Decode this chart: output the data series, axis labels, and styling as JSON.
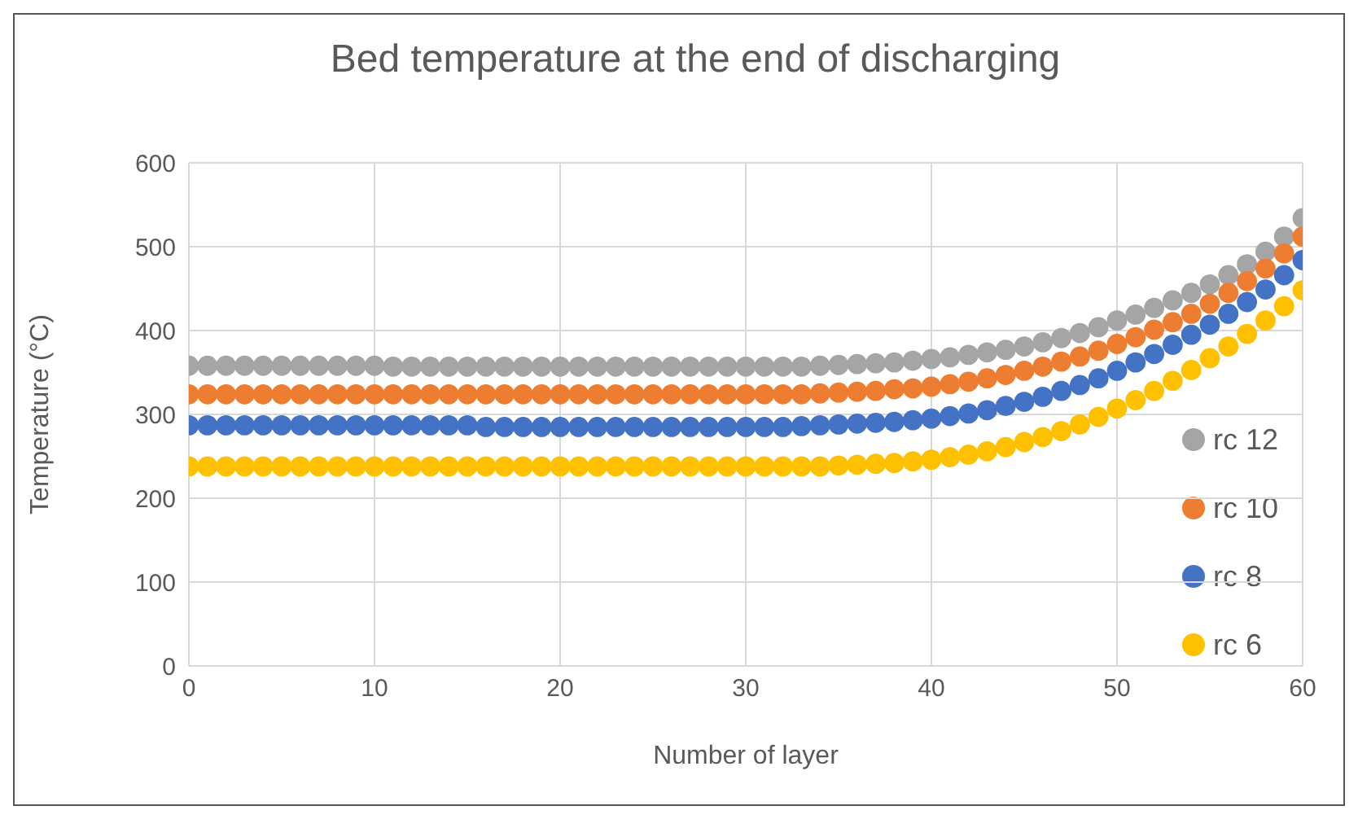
{
  "chart_data": {
    "type": "scatter",
    "title": "Bed temperature at the end of discharging",
    "xlabel": "Number of layer",
    "ylabel": "Temperature (°C)",
    "x": [
      0,
      1,
      2,
      3,
      4,
      5,
      6,
      7,
      8,
      9,
      10,
      11,
      12,
      13,
      14,
      15,
      16,
      17,
      18,
      19,
      20,
      21,
      22,
      23,
      24,
      25,
      26,
      27,
      28,
      29,
      30,
      31,
      32,
      33,
      34,
      35,
      36,
      37,
      38,
      39,
      40,
      41,
      42,
      43,
      44,
      45,
      46,
      47,
      48,
      49,
      50,
      51,
      52,
      53,
      54,
      55,
      56,
      57,
      58,
      59,
      60
    ],
    "series": [
      {
        "name": "rc 12",
        "color": "#a5a5a5",
        "values": [
          358,
          358,
          358,
          358,
          358,
          358,
          358,
          358,
          358,
          358,
          358,
          357,
          357,
          357,
          357,
          357,
          357,
          357,
          357,
          357,
          357,
          357,
          357,
          357,
          357,
          357,
          357,
          357,
          357,
          357,
          357,
          357,
          357,
          357,
          358,
          359,
          360,
          361,
          362,
          364,
          366,
          368,
          371,
          374,
          377,
          381,
          386,
          391,
          397,
          404,
          412,
          419,
          427,
          436,
          445,
          455,
          466,
          479,
          494,
          512,
          534
        ]
      },
      {
        "name": "rc 10",
        "color": "#ed7d31",
        "values": [
          324,
          324,
          324,
          324,
          324,
          324,
          324,
          324,
          324,
          324,
          324,
          324,
          324,
          324,
          324,
          324,
          324,
          324,
          324,
          324,
          324,
          324,
          324,
          324,
          324,
          324,
          324,
          324,
          324,
          324,
          324,
          324,
          324,
          324,
          325,
          326,
          327,
          328,
          330,
          331,
          333,
          336,
          339,
          343,
          347,
          352,
          357,
          363,
          369,
          376,
          384,
          392,
          401,
          410,
          420,
          432,
          445,
          459,
          474,
          492,
          512
        ]
      },
      {
        "name": "rc 8",
        "color": "#4472c4",
        "values": [
          287,
          287,
          287,
          287,
          287,
          287,
          287,
          287,
          287,
          287,
          287,
          287,
          287,
          287,
          287,
          287,
          285,
          285,
          285,
          285,
          285,
          285,
          285,
          285,
          285,
          285,
          285,
          285,
          285,
          285,
          285,
          285,
          285,
          286,
          287,
          288,
          289,
          290,
          291,
          293,
          295,
          298,
          301,
          305,
          310,
          315,
          321,
          328,
          335,
          343,
          352,
          362,
          372,
          383,
          395,
          407,
          420,
          434,
          449,
          466,
          484
        ]
      },
      {
        "name": "rc 6",
        "color": "#ffc000",
        "values": [
          238,
          238,
          238,
          238,
          238,
          238,
          238,
          238,
          238,
          238,
          238,
          238,
          238,
          238,
          238,
          238,
          238,
          238,
          238,
          238,
          238,
          238,
          238,
          238,
          238,
          238,
          238,
          238,
          238,
          238,
          238,
          238,
          238,
          238,
          238,
          239,
          240,
          241,
          242,
          244,
          246,
          249,
          252,
          256,
          261,
          267,
          273,
          280,
          288,
          297,
          307,
          317,
          328,
          340,
          353,
          367,
          381,
          396,
          412,
          429,
          448
        ]
      }
    ],
    "xlim": [
      0,
      60
    ],
    "xticks": [
      0,
      10,
      20,
      30,
      40,
      50,
      60
    ],
    "ylim": [
      0,
      600
    ],
    "yticks": [
      0,
      100,
      200,
      300,
      400,
      500,
      600
    ],
    "grid": true,
    "legend": "bottom right",
    "marker": "circle"
  }
}
